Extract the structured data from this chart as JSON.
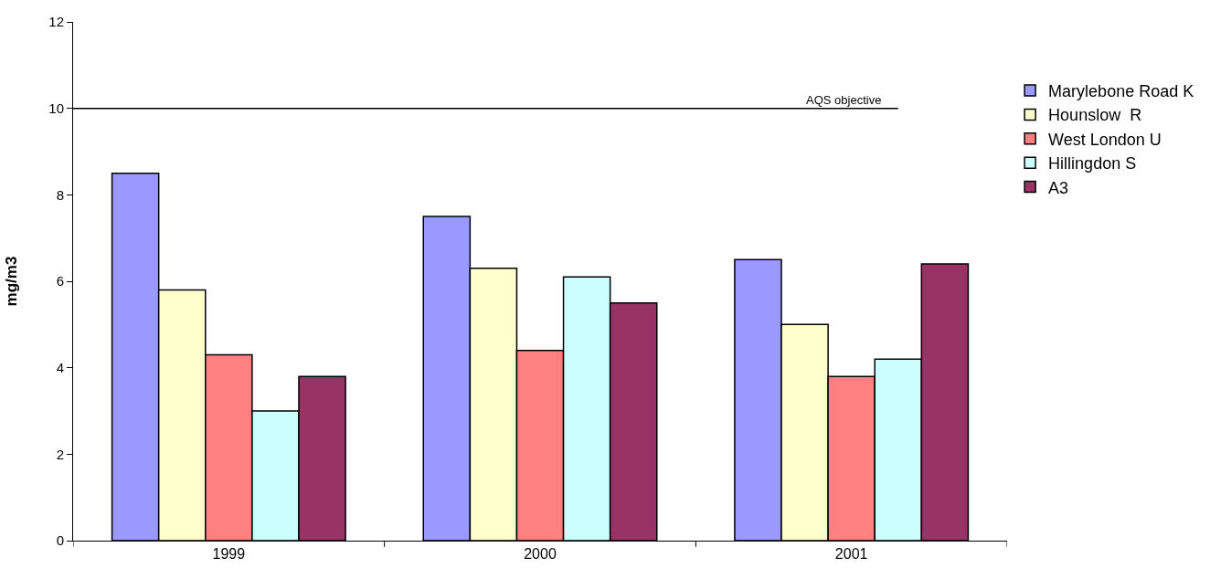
{
  "chart_data": {
    "type": "bar",
    "ylabel": "mg/m3",
    "categories": [
      "1999",
      "2000",
      "2001"
    ],
    "series": [
      {
        "name": "Marylebone Road K",
        "color": "#9999ff",
        "values": [
          8.5,
          7.5,
          6.5
        ]
      },
      {
        "name": "Hounslow  R",
        "color": "#ffffcc",
        "values": [
          5.8,
          6.3,
          5.0
        ]
      },
      {
        "name": "West London U",
        "color": "#ff8080",
        "values": [
          4.3,
          4.4,
          3.8
        ]
      },
      {
        "name": "Hillingdon S",
        "color": "#ccffff",
        "values": [
          3.0,
          6.1,
          4.2
        ]
      },
      {
        "name": "A3",
        "color": "#993366",
        "values": [
          3.8,
          5.5,
          6.4
        ]
      }
    ],
    "ylim": [
      0,
      12
    ],
    "yticks": [
      0,
      2,
      4,
      6,
      8,
      10,
      12
    ],
    "grid": false,
    "legend": "top right",
    "ref_lines": [
      {
        "axis": "y",
        "value": 10,
        "label": "AQS objective",
        "color": "#000000"
      }
    ]
  }
}
